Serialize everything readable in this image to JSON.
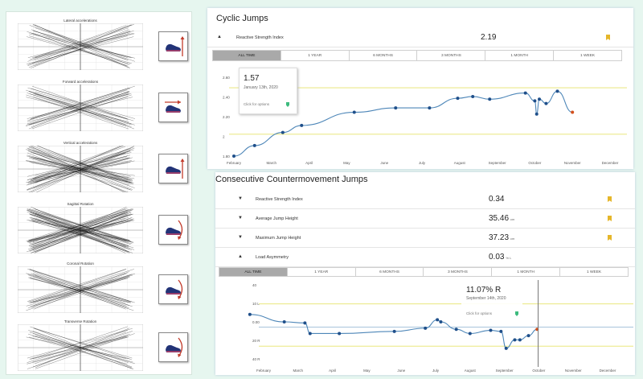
{
  "sensor_panel": {
    "plots": [
      {
        "title": "Lateral accelerations",
        "icon": "shoe-up-arrow-icon"
      },
      {
        "title": "Forward accelerations",
        "icon": "shoe-right-arrow-icon"
      },
      {
        "title": "Vertical accelerations",
        "icon": "shoe-up-arrow-icon"
      },
      {
        "title": "Sagittal Rotation",
        "icon": "shoe-rotate-icon"
      },
      {
        "title": "Coronal Rotation",
        "icon": "shoe-front-rotate-icon"
      },
      {
        "title": "Transverse Rotation",
        "icon": "shoe-top-rotate-icon"
      }
    ]
  },
  "cyclic": {
    "title": "Cyclic Jumps",
    "metric": {
      "label": "Reactive Strength Index",
      "value": "2.19"
    },
    "tabs": [
      "ALL TIME",
      "1 YEAR",
      "6 MONTHS",
      "3 MONTHS",
      "1 MONTH",
      "1 WEEK"
    ],
    "active_tab": 0,
    "tooltip": {
      "value": "1.57",
      "date": "January 13th, 2020",
      "hint": "Click for options"
    },
    "chart_data": {
      "type": "line",
      "ylim": [
        1.8,
        2.7
      ],
      "yticks": [
        "2.60",
        "2.40",
        "2.20",
        "2",
        "1.80"
      ],
      "xticks": [
        "February",
        "March",
        "April",
        "May",
        "June",
        "July",
        "August",
        "September",
        "October",
        "November",
        "December"
      ],
      "x": [
        0.0,
        0.55,
        1.3,
        1.8,
        3.2,
        4.3,
        5.2,
        5.95,
        6.35,
        6.8,
        7.75,
        8.0,
        8.05,
        8.12,
        8.3,
        8.6,
        9.0
      ],
      "y": [
        1.8,
        1.92,
        2.07,
        2.15,
        2.3,
        2.35,
        2.35,
        2.46,
        2.48,
        2.45,
        2.52,
        2.43,
        2.28,
        2.45,
        2.4,
        2.54,
        2.3
      ],
      "last_point_color": "#d4501c",
      "line_color": "#4d86b8",
      "guide_color": "#e6e36a"
    }
  },
  "ccm": {
    "title": "Consecutive Countermovement Jumps",
    "metrics": [
      {
        "label": "Reactive Strength Index",
        "value": "0.34",
        "unit": "",
        "expanded": false
      },
      {
        "label": "Average Jump Height",
        "value": "35.46",
        "unit": "cm",
        "expanded": false
      },
      {
        "label": "Maximum Jump Height",
        "value": "37.23",
        "unit": "cm",
        "expanded": false
      },
      {
        "label": "Load Asymmetry",
        "value": "0.03",
        "unit": "% L",
        "expanded": true
      }
    ],
    "tabs": [
      "ALL TIME",
      "1 YEAR",
      "6 MONTHS",
      "3 MONTHS",
      "1 MONTH",
      "1 WEEK"
    ],
    "active_tab": 0,
    "tooltip": {
      "value": "11.07% R",
      "date": "September 14th, 2020",
      "hint": "Click for options"
    },
    "chart_data": {
      "type": "line",
      "ylim": [
        -30,
        40
      ],
      "yticks": [
        "40",
        "10 L",
        "0.00",
        "20 R",
        "40 R"
      ],
      "xticks": [
        "February",
        "March",
        "April",
        "May",
        "June",
        "July",
        "August",
        "September",
        "October",
        "November",
        "December"
      ],
      "x": [
        -0.4,
        0.6,
        1.2,
        1.35,
        2.2,
        3.8,
        4.7,
        5.05,
        5.15,
        5.6,
        6.0,
        6.6,
        6.9,
        7.05,
        7.3,
        7.45,
        7.7,
        7.95
      ],
      "y": [
        12,
        5,
        4,
        -6,
        -6,
        -4,
        -1,
        7,
        5,
        -2,
        -6,
        -3,
        -4,
        -20,
        -12,
        -12,
        -8,
        -2
      ],
      "last_point_color": "#d4501c",
      "line_color": "#4d86b8",
      "guide_color": "#e6e36a"
    }
  }
}
